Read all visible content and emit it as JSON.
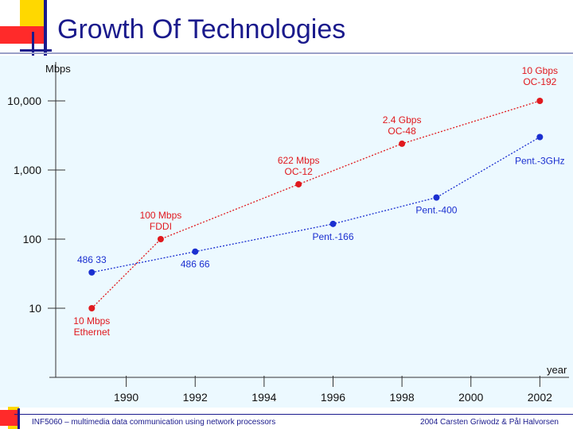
{
  "slide": {
    "title": "Growth Of Technologies",
    "footer_left": "INF5060 – multimedia data communication using network processors",
    "footer_right": "2004 Carsten Griwodz & Pål Halvorsen"
  },
  "colors": {
    "title": "#1a1a8c",
    "network": "#e0191e",
    "processor": "#1a2fd0",
    "panel": "#ecf9ff"
  },
  "chart_data": {
    "type": "line",
    "title": "",
    "xlabel": "year",
    "ylabel": "Mbps",
    "yscale": "log",
    "xlim": [
      1988,
      2002.5
    ],
    "ylim": [
      1,
      20000
    ],
    "xticks": [
      1990,
      1992,
      1994,
      1996,
      1998,
      2000,
      2002
    ],
    "xtick_labels": [
      "1990",
      "1992",
      "1994",
      "1996",
      "1998",
      "2000",
      "2002"
    ],
    "yticks": [
      10,
      100,
      1000,
      10000
    ],
    "ytick_labels": [
      "10",
      "100",
      "1,000",
      "10,000"
    ],
    "grid": false,
    "series": [
      {
        "id": "network",
        "color": "#e0191e",
        "points": [
          {
            "x": 1989,
            "y": 10,
            "label": [
              "10 Mbps",
              "Ethernet"
            ],
            "label_pos": "below"
          },
          {
            "x": 1991,
            "y": 100,
            "label": [
              "100 Mbps",
              "FDDI"
            ],
            "label_pos": "above"
          },
          {
            "x": 1995,
            "y": 622,
            "label": [
              "622 Mbps",
              "OC-12"
            ],
            "label_pos": "above"
          },
          {
            "x": 1998,
            "y": 2400,
            "label": [
              "2.4 Gbps",
              "OC-48"
            ],
            "label_pos": "above"
          },
          {
            "x": 2002,
            "y": 10000,
            "label": [
              "10 Gbps",
              "OC-192"
            ],
            "label_pos": "above-right"
          }
        ]
      },
      {
        "id": "processor",
        "color": "#1a2fd0",
        "points": [
          {
            "x": 1989,
            "y": 33,
            "label": [
              "486 33"
            ],
            "label_pos": "above"
          },
          {
            "x": 1992,
            "y": 66,
            "label": [
              "486 66"
            ],
            "label_pos": "below"
          },
          {
            "x": 1996,
            "y": 166,
            "label": [
              "Pent.-166"
            ],
            "label_pos": "below"
          },
          {
            "x": 1999,
            "y": 400,
            "label": [
              "Pent.-400"
            ],
            "label_pos": "below"
          },
          {
            "x": 2002,
            "y": 3000,
            "label": [
              "Pent.-3GHz"
            ],
            "label_pos": "below"
          }
        ]
      }
    ]
  }
}
